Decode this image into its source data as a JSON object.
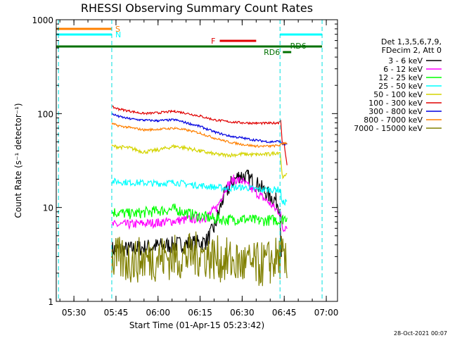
{
  "chart_data": {
    "type": "line",
    "title": "RHESSI Observing Summary Count Rates",
    "xlabel": "Start Time (01-Apr-15 05:23:42)",
    "ylabel": "Count Rate (s⁻¹ detector⁻¹)",
    "yscale": "log",
    "xlim": [
      "05:23:42",
      "07:04:00"
    ],
    "ylim": [
      1,
      1000
    ],
    "x_ticks": [
      "05:30",
      "05:45",
      "06:00",
      "06:15",
      "06:30",
      "06:45",
      "07:00"
    ],
    "y_ticks": [
      "1",
      "10",
      "100",
      "1000"
    ],
    "legend_header": [
      "Det 1,3,5,6,7,9,",
      "FDecim 2, Att 0"
    ],
    "legend_position": "right",
    "grid": false,
    "series": [
      {
        "name": "3 - 6 keV",
        "color": "#000000",
        "points": [
          [
            "05:43:30",
            3.6
          ],
          [
            "05:50:00",
            3.6
          ],
          [
            "06:00:00",
            3.9
          ],
          [
            "06:10:00",
            4.1
          ],
          [
            "06:17:00",
            4.3
          ],
          [
            "06:20:00",
            6.0
          ],
          [
            "06:23:00",
            12
          ],
          [
            "06:26:00",
            18
          ],
          [
            "06:29:00",
            22
          ],
          [
            "06:32:00",
            21
          ],
          [
            "06:36:00",
            17
          ],
          [
            "06:40:00",
            13
          ],
          [
            "06:42:00",
            12
          ],
          [
            "06:43:30",
            10
          ],
          [
            "06:44:00",
            2.5
          ]
        ]
      },
      {
        "name": "6 - 12 keV",
        "color": "#ff00ff",
        "points": [
          [
            "05:43:30",
            6.5
          ],
          [
            "05:50:00",
            6.6
          ],
          [
            "06:00:00",
            6.9
          ],
          [
            "06:10:00",
            7.4
          ],
          [
            "06:17:00",
            7.8
          ],
          [
            "06:21:00",
            10
          ],
          [
            "06:24:00",
            16
          ],
          [
            "06:27:00",
            20
          ],
          [
            "06:30:00",
            19
          ],
          [
            "06:33:00",
            16
          ],
          [
            "06:37:00",
            13
          ],
          [
            "06:40:00",
            11
          ],
          [
            "06:42:00",
            9.5
          ],
          [
            "06:43:30",
            9.0
          ],
          [
            "06:44:30",
            6.0
          ],
          [
            "06:46:00",
            6.5
          ]
        ]
      },
      {
        "name": "12 - 25 keV",
        "color": "#00ff00",
        "points": [
          [
            "05:43:30",
            9.0
          ],
          [
            "05:50:00",
            8.5
          ],
          [
            "06:00:00",
            9.2
          ],
          [
            "06:06:00",
            9.6
          ],
          [
            "06:12:00",
            8.4
          ],
          [
            "06:20:00",
            7.6
          ],
          [
            "06:25:00",
            7.4
          ],
          [
            "06:30:00",
            7.6
          ],
          [
            "06:36:00",
            7.2
          ],
          [
            "06:42:00",
            7.4
          ],
          [
            "06:43:30",
            7.0
          ],
          [
            "06:44:30",
            7.5
          ],
          [
            "06:46:00",
            8.0
          ]
        ]
      },
      {
        "name": "25 - 50 keV",
        "color": "#00ffff",
        "points": [
          [
            "05:43:30",
            19
          ],
          [
            "05:50:00",
            18.5
          ],
          [
            "06:00:00",
            18
          ],
          [
            "06:06:00",
            18.5
          ],
          [
            "06:12:00",
            17.5
          ],
          [
            "06:20:00",
            16.5
          ],
          [
            "06:25:00",
            16
          ],
          [
            "06:30:00",
            16.5
          ],
          [
            "06:36:00",
            15.5
          ],
          [
            "06:42:00",
            15.5
          ],
          [
            "06:43:30",
            15.5
          ],
          [
            "06:44:30",
            11
          ],
          [
            "06:46:00",
            12
          ]
        ]
      },
      {
        "name": "50 - 100 keV",
        "color": "#d4d400",
        "points": [
          [
            "05:43:30",
            45
          ],
          [
            "05:50:00",
            43
          ],
          [
            "05:55:00",
            39
          ],
          [
            "06:00:00",
            41
          ],
          [
            "06:06:00",
            45
          ],
          [
            "06:10:00",
            43
          ],
          [
            "06:15:00",
            40
          ],
          [
            "06:20:00",
            37
          ],
          [
            "06:25:00",
            36
          ],
          [
            "06:30:00",
            37
          ],
          [
            "06:35:00",
            36.5
          ],
          [
            "06:40:00",
            37
          ],
          [
            "06:43:30",
            39
          ],
          [
            "06:44:30",
            20
          ],
          [
            "06:46:00",
            24
          ]
        ]
      },
      {
        "name": "100 - 300 keV",
        "color": "#e00000",
        "points": [
          [
            "05:43:30",
            118
          ],
          [
            "05:46:00",
            112
          ],
          [
            "05:50:00",
            106
          ],
          [
            "05:55:00",
            100
          ],
          [
            "06:00:00",
            102
          ],
          [
            "06:06:00",
            106
          ],
          [
            "06:10:00",
            101
          ],
          [
            "06:15:00",
            94
          ],
          [
            "06:20:00",
            86
          ],
          [
            "06:25:00",
            82
          ],
          [
            "06:30:00",
            80
          ],
          [
            "06:35:00",
            79
          ],
          [
            "06:40:00",
            79
          ],
          [
            "06:43:00",
            80
          ],
          [
            "06:43:45",
            86
          ],
          [
            "06:44:15",
            50
          ],
          [
            "06:45:00",
            48
          ],
          [
            "06:46:00",
            28
          ]
        ]
      },
      {
        "name": "300 - 800 keV",
        "color": "#0000e0",
        "points": [
          [
            "05:43:30",
            100
          ],
          [
            "05:46:00",
            93
          ],
          [
            "05:50:00",
            88
          ],
          [
            "05:55:00",
            85
          ],
          [
            "06:00:00",
            84
          ],
          [
            "06:06:00",
            86
          ],
          [
            "06:10:00",
            80
          ],
          [
            "06:15:00",
            73
          ],
          [
            "06:20:00",
            64
          ],
          [
            "06:25:00",
            58
          ],
          [
            "06:30:00",
            55
          ],
          [
            "06:35:00",
            52
          ],
          [
            "06:40:00",
            50
          ],
          [
            "06:43:30",
            51
          ],
          [
            "06:44:30",
            47
          ],
          [
            "06:46:00",
            47
          ]
        ]
      },
      {
        "name": "800 - 7000 keV",
        "color": "#ff8000",
        "points": [
          [
            "05:43:30",
            78
          ],
          [
            "05:46:00",
            74
          ],
          [
            "05:50:00",
            71
          ],
          [
            "05:55:00",
            67
          ],
          [
            "06:00:00",
            68
          ],
          [
            "06:06:00",
            70
          ],
          [
            "06:10:00",
            67
          ],
          [
            "06:15:00",
            62
          ],
          [
            "06:20:00",
            55
          ],
          [
            "06:25:00",
            50
          ],
          [
            "06:30:00",
            47
          ],
          [
            "06:35:00",
            45
          ],
          [
            "06:40:00",
            45
          ],
          [
            "06:43:30",
            46
          ],
          [
            "06:44:30",
            48
          ],
          [
            "06:46:00",
            49
          ]
        ]
      },
      {
        "name": "7000 - 15000 keV",
        "color": "#808000",
        "points": [
          [
            "05:43:30",
            2.8
          ],
          [
            "05:50:00",
            2.7
          ],
          [
            "06:00:00",
            2.9
          ],
          [
            "06:10:00",
            3.0
          ],
          [
            "06:15:00",
            3.2
          ],
          [
            "06:20:00",
            2.9
          ],
          [
            "06:30:00",
            2.5
          ],
          [
            "06:35:00",
            2.4
          ],
          [
            "06:40:00",
            2.6
          ],
          [
            "06:44:00",
            3.0
          ],
          [
            "06:46:00",
            2.2
          ]
        ]
      }
    ],
    "flag_bars": [
      {
        "label": "S",
        "color": "#ff8000",
        "start": "05:23:42",
        "end": "05:43:30",
        "level": 1
      },
      {
        "label": "N",
        "color": "#00ffff",
        "start": "05:23:42",
        "end": "05:43:30",
        "level": 2
      },
      {
        "label": "N",
        "color": "#00ffff",
        "start": "06:43:30",
        "end": "06:58:30",
        "level": 2
      },
      {
        "label": "F",
        "color": "#e00000",
        "start": "06:22:00",
        "end": "06:35:00",
        "level": 3
      },
      {
        "label": "RD6",
        "color": "#007000",
        "start": "05:23:42",
        "end": "06:58:30",
        "level": 4
      },
      {
        "label": "RD6",
        "color": "#007000",
        "start": "06:44:30",
        "end": "06:47:30",
        "level": 5
      }
    ],
    "night_boundaries": [
      "05:24:30",
      "05:43:30",
      "06:43:30",
      "06:58:30"
    ]
  },
  "footer": {
    "timestamp": "28-Oct-2021 00:07"
  }
}
